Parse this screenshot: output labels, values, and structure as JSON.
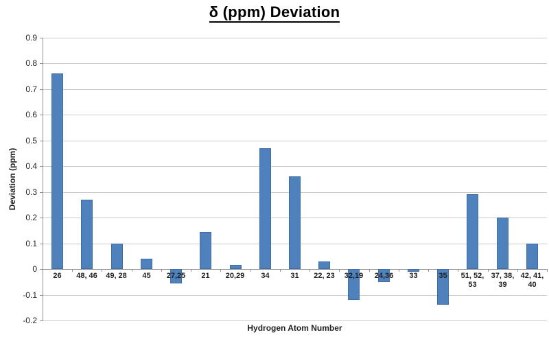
{
  "chart_data": {
    "type": "bar",
    "title": "δ (ppm) Deviation",
    "xlabel": "Hydrogen Atom Number",
    "ylabel": "Deviation (ppm)",
    "categories": [
      "26",
      "48, 46",
      "49, 28",
      "45",
      "27,25",
      "21",
      "20,29",
      "34",
      "31",
      "22, 23",
      "32,19",
      "24,36",
      "33",
      "35",
      "51, 52, 53",
      "37, 38, 39",
      "42, 41, 40"
    ],
    "values": [
      0.76,
      0.27,
      0.1,
      0.04,
      -0.055,
      0.145,
      0.015,
      0.47,
      0.36,
      0.03,
      -0.12,
      -0.05,
      -0.01,
      -0.14,
      0.29,
      0.2,
      0.1
    ],
    "ylim": [
      -0.2,
      0.9
    ],
    "ytick_step": 0.1,
    "ytick_labels": [
      "0.9",
      "0.8",
      "0.7",
      "0.6",
      "0.5",
      "0.4",
      "0.3",
      "0.2",
      "0.1",
      "0",
      "-0.1",
      "-0.2"
    ],
    "grid": true,
    "legend": false,
    "bar_color": "#4f81bd",
    "bar_border_color": "#3e6da3",
    "gridline_color": "#c9c9c9",
    "axis_color": "#8e8e8e",
    "background_color": "#ffffff"
  }
}
